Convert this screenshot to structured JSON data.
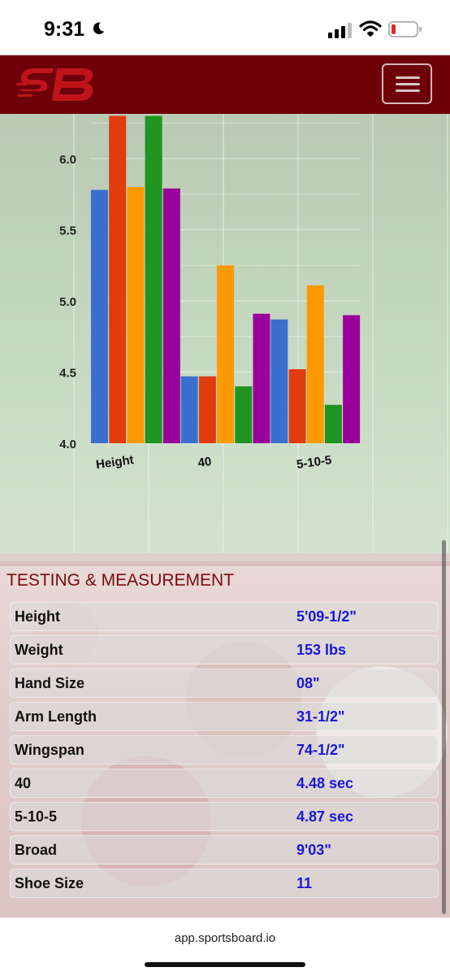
{
  "status": {
    "time": "9:31"
  },
  "icons": {
    "moon": "moon-icon",
    "signal": "cellular-signal-icon",
    "wifi": "wifi-icon",
    "battery": "battery-low-icon",
    "menu": "hamburger-menu-icon"
  },
  "brand": {
    "logo_text": "SB",
    "color": "#6e0009",
    "logo_color": "#c0141b"
  },
  "chart_data": {
    "type": "bar",
    "categories": [
      "Height",
      "40",
      "5-10-5"
    ],
    "series": [
      {
        "color": "#3a6fd0",
        "values": [
          5.78,
          4.47,
          4.87
        ]
      },
      {
        "color": "#e03c0d",
        "values": [
          6.5,
          4.47,
          4.52
        ]
      },
      {
        "color": "#ff9900",
        "values": [
          5.8,
          5.25,
          5.11
        ]
      },
      {
        "color": "#1f9420",
        "values": [
          6.5,
          4.4,
          4.27
        ]
      },
      {
        "color": "#990099",
        "values": [
          5.79,
          4.91,
          4.9
        ]
      }
    ],
    "yticks": [
      "4.0",
      "4.5",
      "5.0",
      "5.5",
      "6.0"
    ],
    "ylim": [
      4.0,
      6.3
    ],
    "grid": true
  },
  "testing": {
    "title": "TESTING & MEASUREMENT",
    "rows": [
      {
        "label": "Height",
        "value": "5'09-1/2\""
      },
      {
        "label": "Weight",
        "value": "153 lbs"
      },
      {
        "label": "Hand Size",
        "value": "08\""
      },
      {
        "label": "Arm Length",
        "value": "31-1/2\""
      },
      {
        "label": "Wingspan",
        "value": "74-1/2\""
      },
      {
        "label": "40",
        "value": "4.48 sec"
      },
      {
        "label": "5-10-5",
        "value": "4.87 sec"
      },
      {
        "label": "Broad",
        "value": "9'03\""
      },
      {
        "label": "Shoe Size",
        "value": "11"
      }
    ]
  },
  "browser": {
    "url": "app.sportsboard.io"
  }
}
